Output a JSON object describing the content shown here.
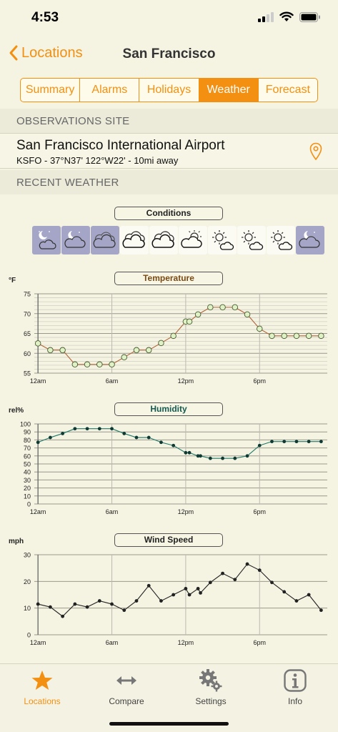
{
  "status": {
    "time": "4:53"
  },
  "nav": {
    "back_label": "Locations",
    "title": "San Francisco"
  },
  "tabs": [
    {
      "label": "Summary",
      "active": false
    },
    {
      "label": "Alarms",
      "active": false
    },
    {
      "label": "Holidays",
      "active": false
    },
    {
      "label": "Weather",
      "active": true
    },
    {
      "label": "Forecast",
      "active": false
    }
  ],
  "observations": {
    "header": "OBSERVATIONS SITE",
    "name": "San Francisco International Airport",
    "detail": "KSFO - 37°N37' 122°W22' - 10mi away"
  },
  "recent_header": "RECENT WEATHER",
  "conditions": {
    "label": "Conditions",
    "icons": [
      "night-partly-cloudy",
      "night-partly-cloudy",
      "cloudy-night",
      "cloudy",
      "cloudy",
      "partly-cloudy-day",
      "partly-sunny",
      "partly-sunny",
      "partly-sunny",
      "night-partly-cloudy"
    ]
  },
  "chart_data": [
    {
      "type": "line",
      "title": "Temperature",
      "ylabel": "°F",
      "ylim": [
        55,
        75
      ],
      "yticks": [
        55,
        60,
        65,
        70,
        75
      ],
      "xlim": [
        -0.3,
        23.5
      ],
      "xticks": [
        {
          "x": 0,
          "label": "12am"
        },
        {
          "x": 6,
          "label": "6am"
        },
        {
          "x": 12,
          "label": "12pm"
        },
        {
          "x": 18,
          "label": "6pm"
        }
      ],
      "marker": "open-circle",
      "color": "#b0653a",
      "points": [
        [
          0,
          62.5
        ],
        [
          1,
          60.8
        ],
        [
          2,
          60.8
        ],
        [
          3,
          57.2
        ],
        [
          4,
          57.2
        ],
        [
          5,
          57.2
        ],
        [
          6,
          57.2
        ],
        [
          7,
          59
        ],
        [
          8,
          60.8
        ],
        [
          9,
          60.8
        ],
        [
          10,
          62.6
        ],
        [
          11,
          64.4
        ],
        [
          12,
          68
        ],
        [
          12.3,
          68
        ],
        [
          13,
          69.8
        ],
        [
          14,
          71.6
        ],
        [
          15,
          71.6
        ],
        [
          16,
          71.6
        ],
        [
          17,
          69.8
        ],
        [
          18,
          66.2
        ],
        [
          19,
          64.4
        ],
        [
          20,
          64.4
        ],
        [
          21,
          64.4
        ],
        [
          22,
          64.4
        ],
        [
          23,
          64.4
        ]
      ]
    },
    {
      "type": "line",
      "title": "Humidity",
      "ylabel": "rel%",
      "ylim": [
        0,
        100
      ],
      "yticks": [
        0,
        10,
        20,
        30,
        40,
        50,
        60,
        70,
        80,
        90,
        100
      ],
      "xlim": [
        -0.3,
        23.5
      ],
      "xticks": [
        {
          "x": 0,
          "label": "12am"
        },
        {
          "x": 6,
          "label": "6am"
        },
        {
          "x": 12,
          "label": "12pm"
        },
        {
          "x": 18,
          "label": "6pm"
        }
      ],
      "marker": "dot",
      "color": "#1f7a6b",
      "points": [
        [
          0,
          77
        ],
        [
          1,
          83
        ],
        [
          2,
          88
        ],
        [
          3,
          94
        ],
        [
          4,
          94
        ],
        [
          5,
          94
        ],
        [
          6,
          94
        ],
        [
          7,
          88
        ],
        [
          8,
          83
        ],
        [
          9,
          83
        ],
        [
          10,
          77
        ],
        [
          11,
          73
        ],
        [
          12,
          64
        ],
        [
          12.3,
          64
        ],
        [
          13,
          60
        ],
        [
          13.2,
          60
        ],
        [
          14,
          57
        ],
        [
          15,
          57
        ],
        [
          16,
          57
        ],
        [
          17,
          60
        ],
        [
          18,
          73
        ],
        [
          19,
          78
        ],
        [
          20,
          78
        ],
        [
          21,
          78
        ],
        [
          22,
          78
        ],
        [
          23,
          78
        ]
      ]
    },
    {
      "type": "line",
      "title": "Wind Speed",
      "ylabel": "mph",
      "ylim": [
        0,
        30
      ],
      "yticks": [
        0,
        10,
        20,
        30
      ],
      "xlim": [
        -0.3,
        23.5
      ],
      "xticks": [
        {
          "x": 0,
          "label": "12am"
        },
        {
          "x": 6,
          "label": "6am"
        },
        {
          "x": 12,
          "label": "12pm"
        },
        {
          "x": 18,
          "label": "6pm"
        }
      ],
      "marker": "dot",
      "color": "#222222",
      "points": [
        [
          0,
          11.5
        ],
        [
          1,
          10.4
        ],
        [
          2,
          6.9
        ],
        [
          3,
          11.5
        ],
        [
          4,
          10.4
        ],
        [
          5,
          12.7
        ],
        [
          6,
          11.5
        ],
        [
          7,
          9.2
        ],
        [
          8,
          12.7
        ],
        [
          9,
          18.4
        ],
        [
          10,
          12.7
        ],
        [
          11,
          15
        ],
        [
          12,
          17.3
        ],
        [
          12.3,
          15
        ],
        [
          13,
          17.3
        ],
        [
          13.2,
          15.7
        ],
        [
          14,
          19.6
        ],
        [
          15,
          23
        ],
        [
          16,
          20.7
        ],
        [
          17,
          26.5
        ],
        [
          18,
          24.2
        ],
        [
          19,
          19.6
        ],
        [
          20,
          16.1
        ],
        [
          21,
          12.7
        ],
        [
          22,
          15
        ],
        [
          23,
          9.2
        ]
      ]
    }
  ],
  "tab_bar": [
    {
      "label": "Locations",
      "icon": "star-icon",
      "active": true
    },
    {
      "label": "Compare",
      "icon": "arrows-horizontal-icon",
      "active": false
    },
    {
      "label": "Settings",
      "icon": "gears-icon",
      "active": false
    },
    {
      "label": "Info",
      "icon": "info-icon",
      "active": false
    }
  ],
  "colors": {
    "accent": "#f39012",
    "night_tile": "#a5a5c8"
  }
}
